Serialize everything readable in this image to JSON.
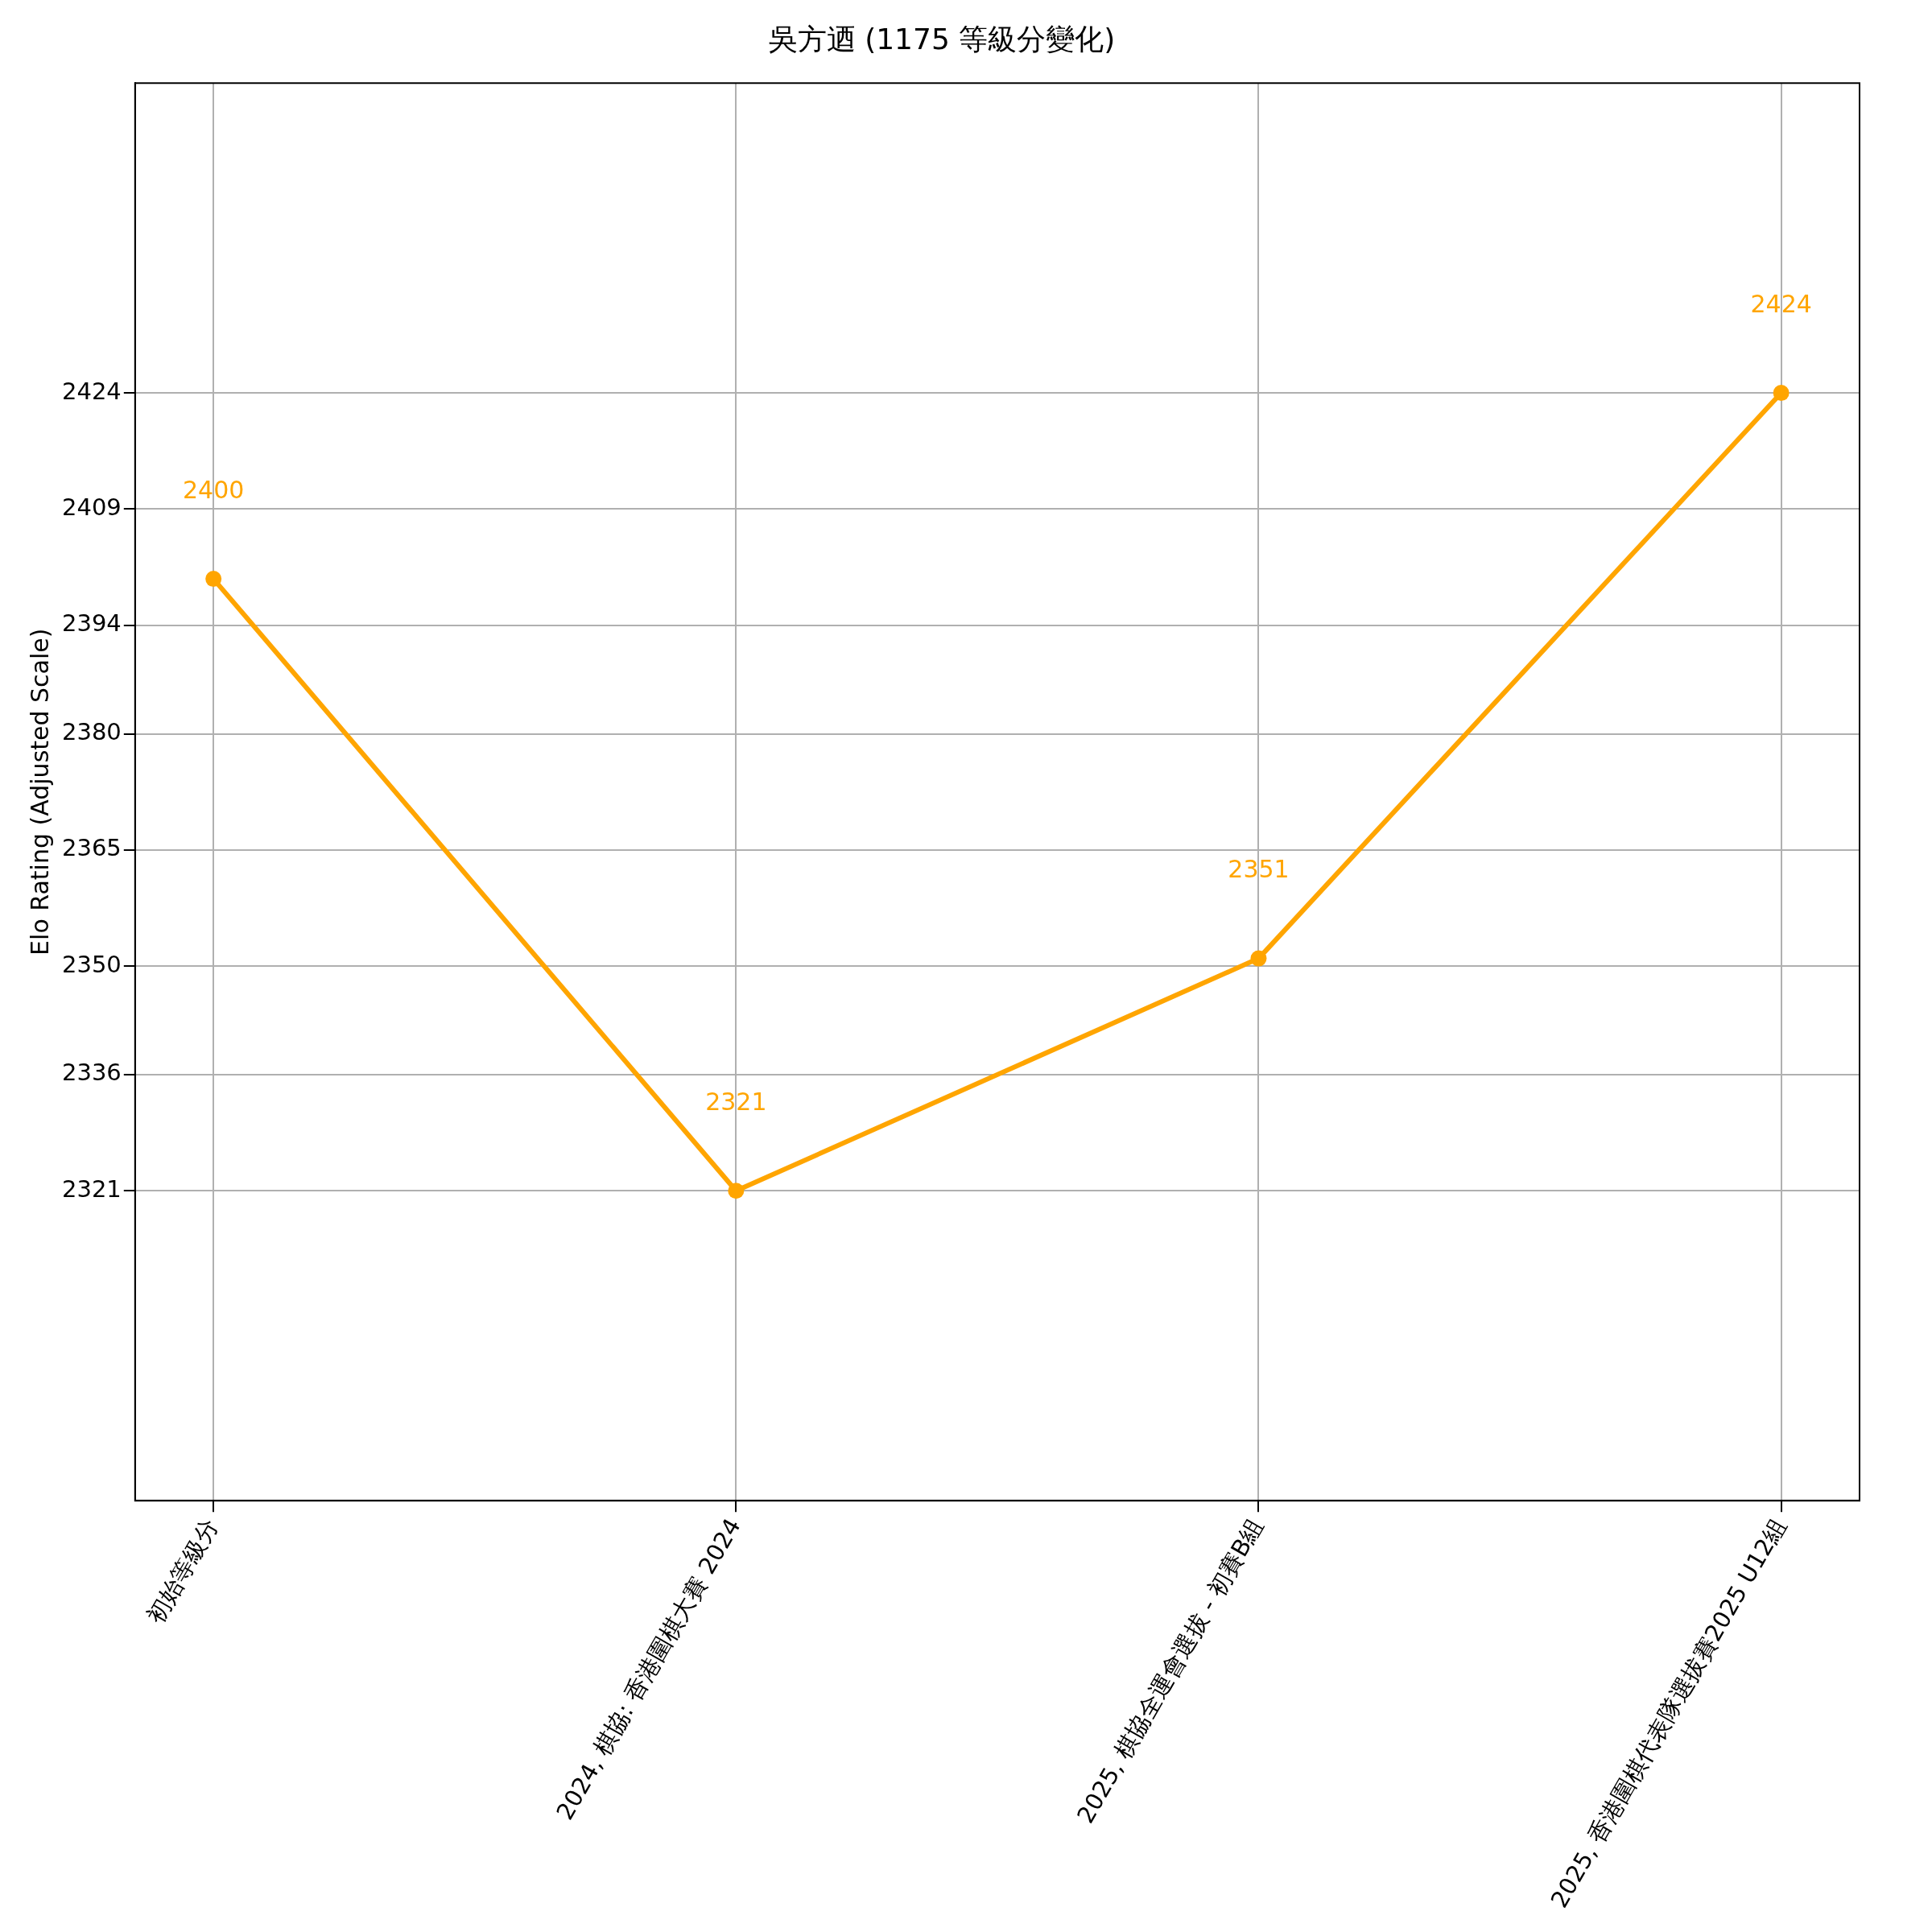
{
  "chart_data": {
    "type": "line",
    "title": "吳方迺 (1175 等級分變化)",
    "ylabel": "Elo Rating (Adjusted Scale)",
    "categories": [
      "初始等級分",
      "2024, 棋協: 香港圍棋大賽 2024",
      "2025, 棋協全運會選拔 - 初賽B組",
      "2025, 香港圍棋代表隊選拔賽2025 U12組"
    ],
    "series": [
      {
        "color": "#ffa500",
        "values": [
          2400,
          2321,
          2351,
          2424
        ]
      }
    ],
    "ylim": [
      2281,
      2464
    ],
    "yticks": [
      2321,
      2336,
      2350,
      2365,
      2380,
      2394,
      2409,
      2424
    ],
    "grid": true,
    "legend": false,
    "marker": "circle",
    "line_style": "solid",
    "data_labels": true
  }
}
